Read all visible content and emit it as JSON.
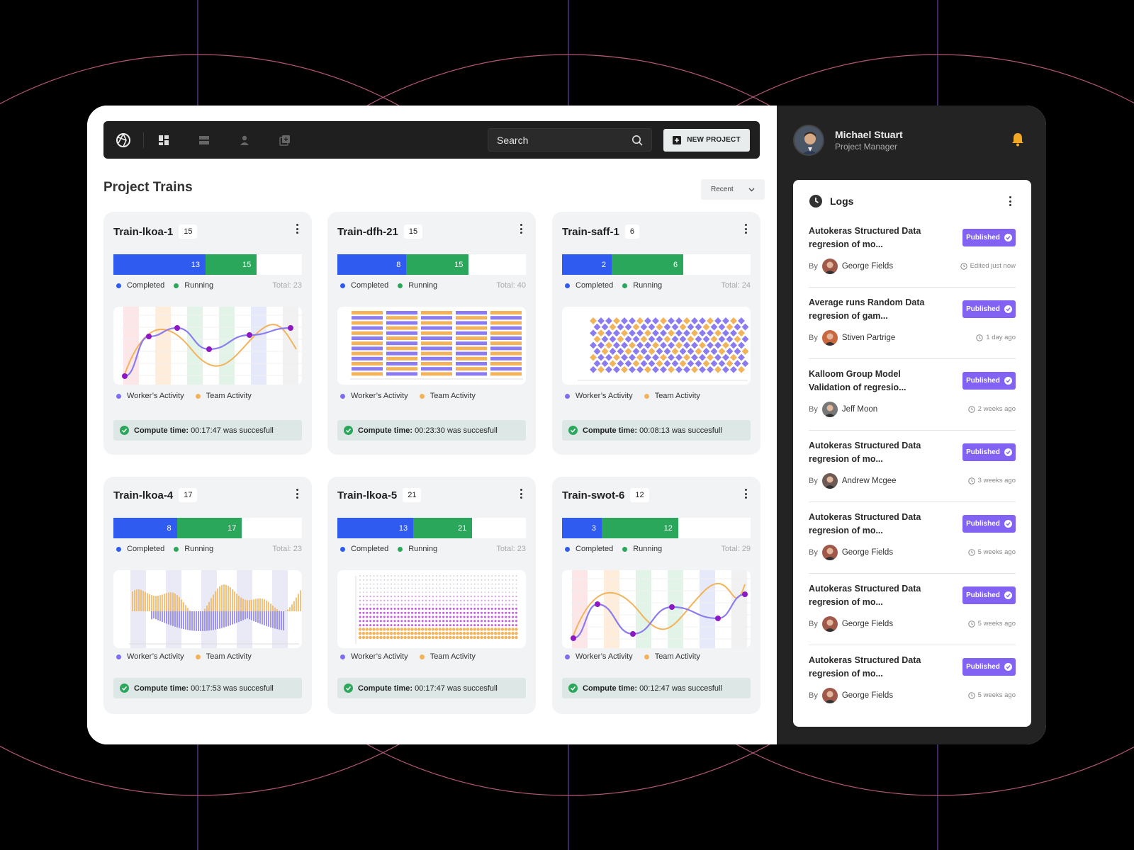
{
  "topbar": {
    "search_placeholder": "Search",
    "new_project_label": "NEW PROJECT"
  },
  "page": {
    "title": "Project Trains",
    "sort_label": "Recent"
  },
  "legend": {
    "completed": "Completed",
    "running": "Running",
    "workers": "Worker’s Activity",
    "team": "Team Activity",
    "compute_label": "Compute time:"
  },
  "colors": {
    "blue": "#2f5bf1",
    "green": "#2ba75c",
    "purple": "#8262f2",
    "orange": "#f2b35a"
  },
  "cards": [
    {
      "name": "Train-lkoa-1",
      "count": "15",
      "completed": 13,
      "running": 15,
      "total_text": "Total: 23",
      "chart_type": "line",
      "compute_value": "00:17:47",
      "compute_suffix": "was succesfull"
    },
    {
      "name": "Train-dfh-21",
      "count": "15",
      "completed": 8,
      "running": 15,
      "total_text": "Total: 40",
      "chart_type": "stripes",
      "compute_value": "00:23:30",
      "compute_suffix": "was succesfull"
    },
    {
      "name": "Train-saff-1",
      "count": "6",
      "completed": 2,
      "running": 6,
      "total_text": "Total: 24",
      "chart_type": "diamonds",
      "compute_value": "00:08:13",
      "compute_suffix": "was succesfull"
    },
    {
      "name": "Train-lkoa-4",
      "count": "17",
      "completed": 8,
      "running": 17,
      "total_text": "Total: 23",
      "chart_type": "mirror",
      "compute_value": "00:17:53",
      "compute_suffix": "was succesfull"
    },
    {
      "name": "Train-lkoa-5",
      "count": "21",
      "completed": 13,
      "running": 21,
      "total_text": "Total: 23",
      "chart_type": "dots",
      "compute_value": "00:17:47",
      "compute_suffix": "was succesfull"
    },
    {
      "name": "Train-swot-6",
      "count": "12",
      "completed": 3,
      "running": 12,
      "total_text": "Total: 29",
      "chart_type": "line",
      "compute_value": "00:12:47",
      "compute_suffix": "was succesfull"
    }
  ],
  "profile": {
    "name": "Michael Stuart",
    "role": "Project Manager"
  },
  "logs": {
    "title": "Logs",
    "by_label": "By",
    "badge_label": "Published",
    "items": [
      {
        "title": "Autokeras Structured Data regresion of mo...",
        "author": "George Fields",
        "time": "Edited just now",
        "avatar": "#a0584a"
      },
      {
        "title": "Average runs Random Data regresion of gam...",
        "author": "Stiven Partrige",
        "time": "1 day ago",
        "avatar": "#c9673f"
      },
      {
        "title": "Kalloom Group Model Validation of regresio...",
        "author": "Jeff Moon",
        "time": "2 weeks ago",
        "avatar": "#777777"
      },
      {
        "title": "Autokeras Structured Data regresion of mo...",
        "author": "Andrew Mcgee",
        "time": "3 weeks ago",
        "avatar": "#6f5b55"
      },
      {
        "title": "Autokeras Structured Data regresion of mo...",
        "author": "George Fields",
        "time": "5 weeks ago",
        "avatar": "#a0584a"
      },
      {
        "title": "Autokeras Structured Data regresion of mo...",
        "author": "George Fields",
        "time": "5 weeks ago",
        "avatar": "#a0584a"
      },
      {
        "title": "Autokeras Structured Data regresion of mo...",
        "author": "George Fields",
        "time": "5 weeks ago",
        "avatar": "#a0584a"
      }
    ]
  }
}
